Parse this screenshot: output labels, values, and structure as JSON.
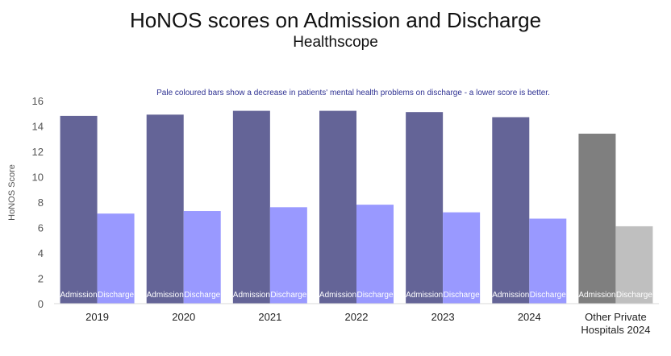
{
  "chart_data": {
    "type": "bar",
    "title": "HoNOS scores on Admission and Discharge",
    "subtitle": "Healthscope",
    "annotation": "Pale coloured bars show a decrease in patients' mental health problems on discharge - a lower score is better.",
    "ylabel": "HoNOS Score",
    "xlabel": "",
    "ylim": [
      0,
      16
    ],
    "yticks": [
      0,
      2,
      4,
      6,
      8,
      10,
      12,
      14,
      16
    ],
    "grid": false,
    "legend": "none",
    "categories": [
      "2019",
      "2020",
      "2021",
      "2022",
      "2023",
      "2024",
      [
        "Other Private",
        "Hospitals 2024"
      ]
    ],
    "series": [
      {
        "name": "Admission",
        "values": [
          14.8,
          14.9,
          15.2,
          15.2,
          15.1,
          14.7,
          13.4
        ],
        "colors": [
          "#646497",
          "#646497",
          "#646497",
          "#646497",
          "#646497",
          "#646497",
          "#7F7F7F"
        ]
      },
      {
        "name": "Discharge",
        "values": [
          7.1,
          7.3,
          7.6,
          7.8,
          7.2,
          6.7,
          6.1
        ],
        "colors": [
          "#9999FF",
          "#9999FF",
          "#9999FF",
          "#9999FF",
          "#9999FF",
          "#9999FF",
          "#BFBFBF"
        ]
      }
    ]
  }
}
